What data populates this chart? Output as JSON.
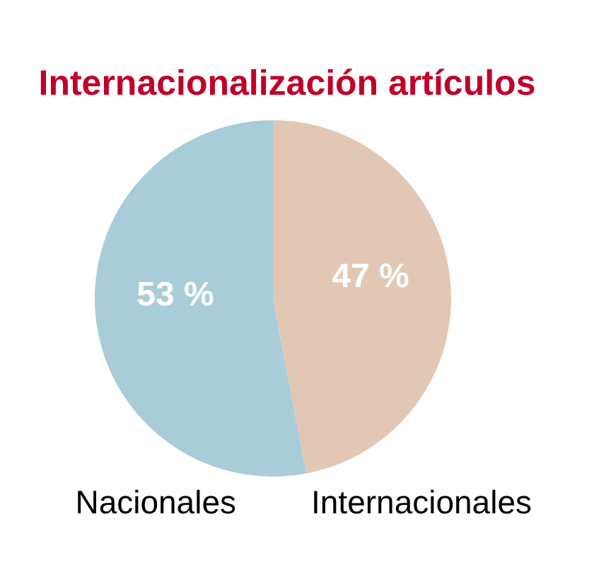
{
  "chart_data": {
    "type": "pie",
    "title": "Internacionalización artículos",
    "categories": [
      "Internacionales",
      "Nacionales"
    ],
    "values": [
      47,
      53
    ],
    "colors": [
      "#e2c8b4",
      "#a9cdd8"
    ],
    "value_labels": [
      "47 %",
      "53 %"
    ]
  }
}
